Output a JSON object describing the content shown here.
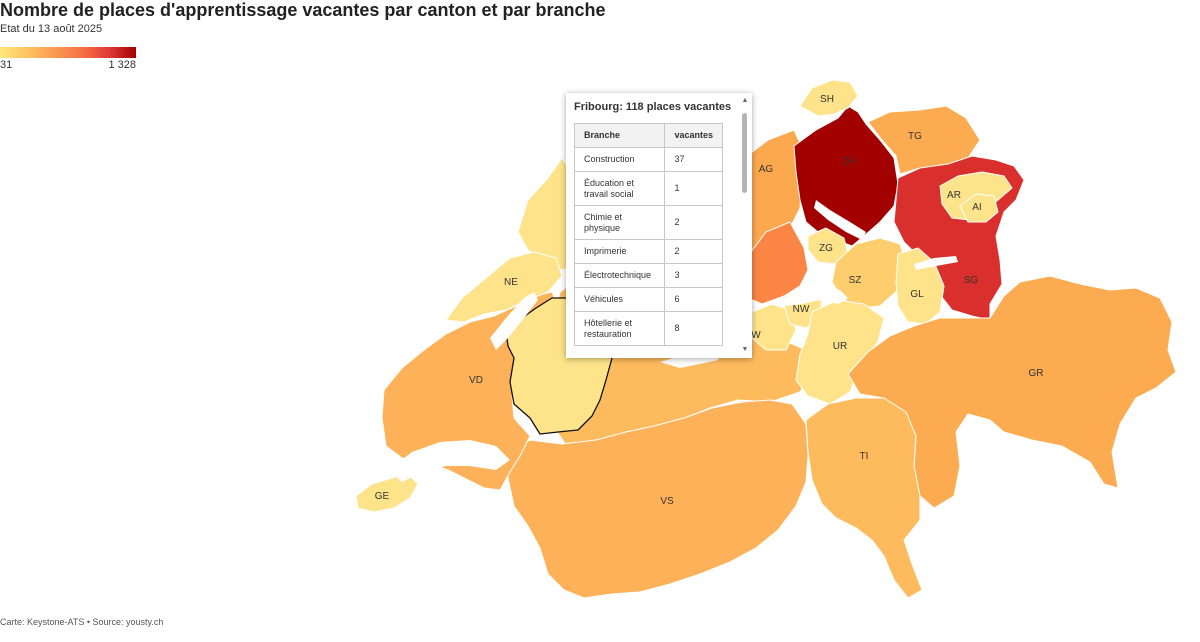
{
  "header": {
    "title": "Nombre de places d'apprentissage vacantes par canton et par branche",
    "subtitle": "Etat du 13 août 2025"
  },
  "legend": {
    "min_label": "31",
    "max_label": "1 328",
    "colors": [
      "#ffe87a",
      "#fdb05a",
      "#f56d44",
      "#e0393a",
      "#a40000"
    ]
  },
  "map": {
    "cantons": [
      {
        "code": "GE",
        "label": "GE",
        "color": "#fde38a"
      },
      {
        "code": "VD",
        "label": "VD",
        "color": "#fdb25a"
      },
      {
        "code": "NE",
        "label": "NE",
        "color": "#fee38a"
      },
      {
        "code": "JU",
        "label": "",
        "color": "#fee38a"
      },
      {
        "code": "FR",
        "label": "",
        "color": "#fde38a"
      },
      {
        "code": "BE",
        "label": "",
        "color": "#fdbb5e"
      },
      {
        "code": "VS",
        "label": "VS",
        "color": "#fdb25a"
      },
      {
        "code": "SO",
        "label": "",
        "color": "#fdc46a"
      },
      {
        "code": "BS",
        "label": "",
        "color": "#fdbb5e"
      },
      {
        "code": "BL",
        "label": "",
        "color": "#fdc46a"
      },
      {
        "code": "AG",
        "label": "AG",
        "color": "#fca84f"
      },
      {
        "code": "LU",
        "label": "",
        "color": "#fb8544"
      },
      {
        "code": "ZH",
        "label": "ZH",
        "color": "#a30000"
      },
      {
        "code": "SH",
        "label": "SH",
        "color": "#fee38a"
      },
      {
        "code": "TG",
        "label": "TG",
        "color": "#fdab50"
      },
      {
        "code": "SG",
        "label": "SG",
        "color": "#d9302e"
      },
      {
        "code": "AR",
        "label": "AR",
        "color": "#fde38a"
      },
      {
        "code": "AI",
        "label": "AI",
        "color": "#fde38a"
      },
      {
        "code": "ZG",
        "label": "ZG",
        "color": "#fee38a"
      },
      {
        "code": "SZ",
        "label": "SZ",
        "color": "#fdcd6e"
      },
      {
        "code": "GL",
        "label": "GL",
        "color": "#fee38a"
      },
      {
        "code": "OW",
        "label": "W",
        "color": "#fee38a"
      },
      {
        "code": "NW",
        "label": "NW",
        "color": "#fee38a"
      },
      {
        "code": "UR",
        "label": "UR",
        "color": "#fee38a"
      },
      {
        "code": "GR",
        "label": "GR",
        "color": "#fdab50"
      },
      {
        "code": "TI",
        "label": "TI",
        "color": "#fdbb5e"
      }
    ],
    "selected": "FR"
  },
  "tooltip": {
    "title": "Fribourg: 118 places vacantes",
    "columns": [
      "Branche",
      "vacantes"
    ],
    "rows": [
      {
        "branche": "Construction",
        "vacantes": "37"
      },
      {
        "branche": "Éducation et travail social",
        "vacantes": "1"
      },
      {
        "branche": "Chimie et physique",
        "vacantes": "2"
      },
      {
        "branche": "Imprimerie",
        "vacantes": "2"
      },
      {
        "branche": "Électrotechnique",
        "vacantes": "3"
      },
      {
        "branche": "Véhicules",
        "vacantes": "6"
      },
      {
        "branche": "Hôtellerie et restauration",
        "vacantes": "8"
      }
    ]
  },
  "footer": {
    "source": "Carte: Keystone-ATS • Source: yousty.ch"
  }
}
